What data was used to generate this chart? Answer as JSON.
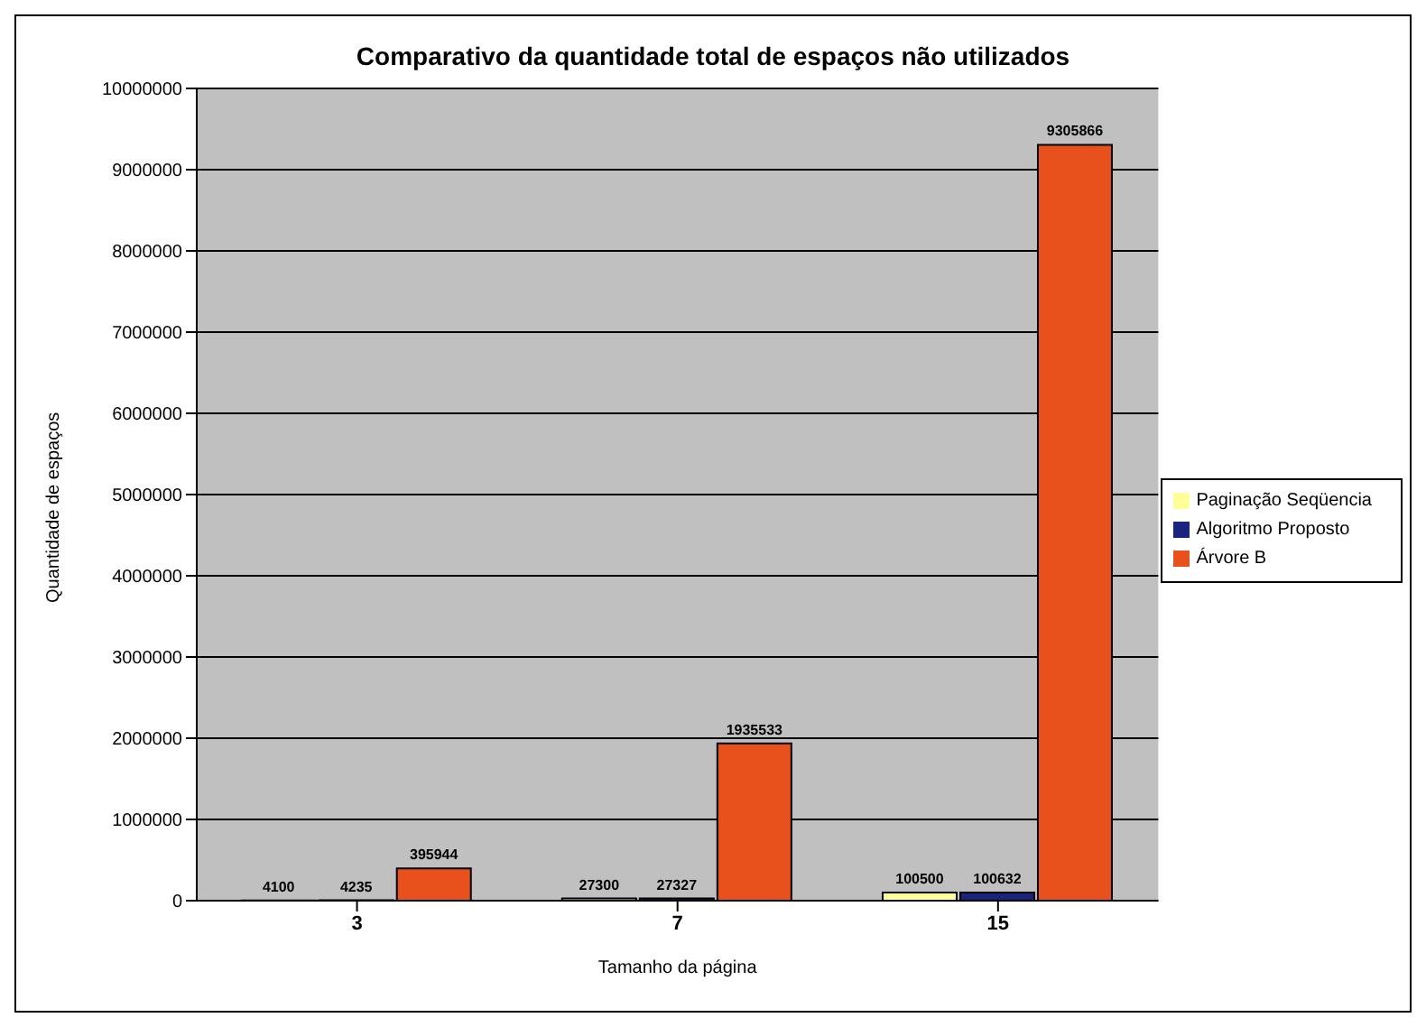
{
  "chart_data": {
    "type": "bar",
    "title": "Comparativo da quantidade total de espaços não utilizados",
    "xlabel": "Tamanho da página",
    "ylabel": "Quantidade de espaços",
    "categories": [
      "3",
      "7",
      "15"
    ],
    "series": [
      {
        "name": "Paginação Seqüencia",
        "color": "#ffff99",
        "values": [
          4100,
          27300,
          100500
        ]
      },
      {
        "name": "Algoritmo Proposto",
        "color": "#1a237e",
        "values": [
          4235,
          27327,
          100632
        ]
      },
      {
        "name": "Árvore B",
        "color": "#e8501c",
        "values": [
          395944,
          1935533,
          9305866
        ]
      }
    ],
    "ylim": [
      0,
      10000000
    ],
    "yticks": [
      0,
      1000000,
      2000000,
      3000000,
      4000000,
      5000000,
      6000000,
      7000000,
      8000000,
      9000000,
      10000000
    ],
    "grid": "y",
    "legend": "right",
    "data_labels": true
  }
}
